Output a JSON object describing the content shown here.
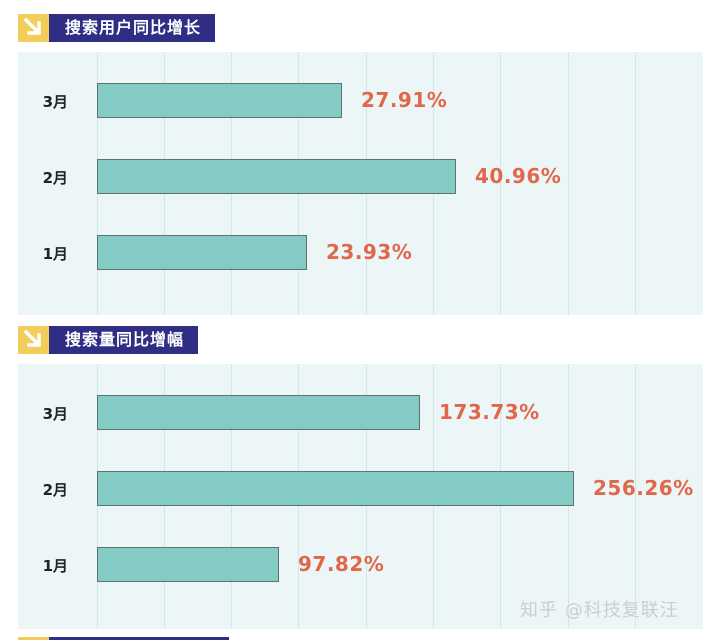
{
  "chart_data": [
    {
      "type": "bar",
      "orientation": "horizontal",
      "title": "搜索用户同比增长",
      "categories": [
        "3月",
        "2月",
        "1月"
      ],
      "values": [
        27.91,
        40.96,
        23.93
      ],
      "value_labels": [
        "27.91%",
        "40.96%",
        "23.93%"
      ],
      "unit": "%",
      "grid": true,
      "xlabel": "",
      "ylabel": ""
    },
    {
      "type": "bar",
      "orientation": "horizontal",
      "title": "搜索量同比增幅",
      "categories": [
        "3月",
        "2月",
        "1月"
      ],
      "values": [
        173.73,
        256.26,
        97.82
      ],
      "value_labels": [
        "173.73%",
        "256.26%",
        "97.82%"
      ],
      "unit": "%",
      "grid": true,
      "xlabel": "",
      "ylabel": ""
    }
  ],
  "colors": {
    "title_bg": "#2f2d84",
    "title_icon_bg": "#f2cd5a",
    "bar_fill": "#84cbc5",
    "bar_border": "#5e726f",
    "value_text": "#e0684a",
    "panel_bg": "#edf6f6"
  },
  "icons": {
    "title_icon": "arrow-down-right-icon"
  },
  "watermark": "知乎 @科技复联汪"
}
